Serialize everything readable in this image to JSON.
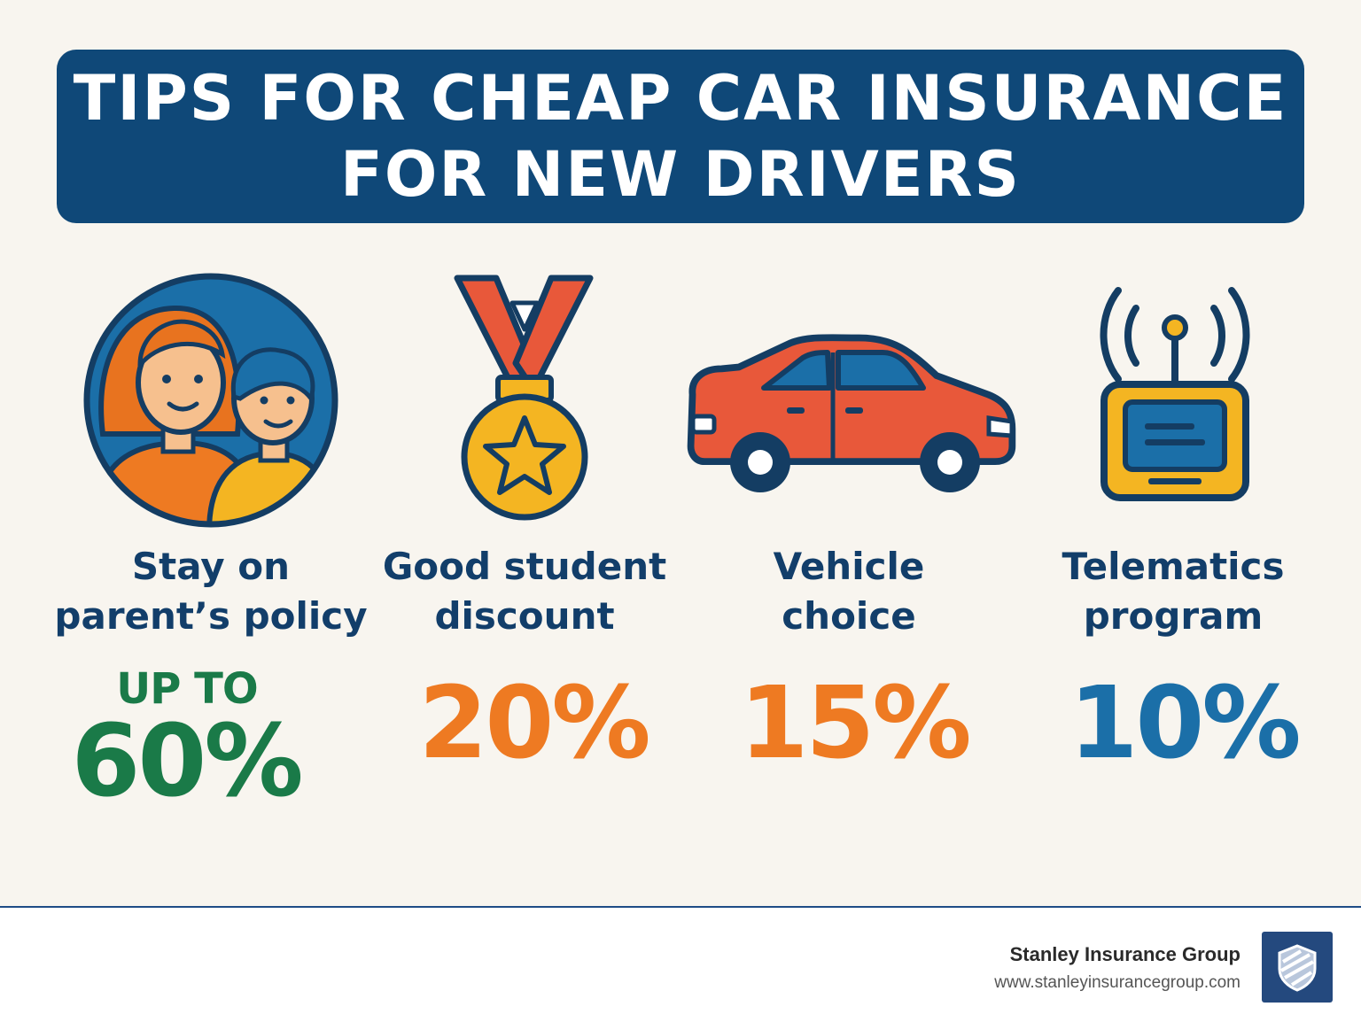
{
  "title": {
    "line1": "TIPS FOR CHEAP CAR INSURANCE",
    "line2": "FOR NEW DRIVERS"
  },
  "tips": [
    {
      "label_line1": "Stay on",
      "label_line2": "parent’s policy",
      "prefix": "UP TO",
      "value": "60%",
      "color": "#1a7a48",
      "icon": "parent-child-icon"
    },
    {
      "label_line1": "Good student",
      "label_line2": "discount",
      "value": "20%",
      "color": "#ee7a22",
      "icon": "medal-icon"
    },
    {
      "label_line1": "Vehicle",
      "label_line2": "choice",
      "value": "15%",
      "color": "#ee7a22",
      "icon": "car-icon"
    },
    {
      "label_line1": "Telematics",
      "label_line2": "program",
      "value": "10%",
      "color": "#1b6fa8",
      "icon": "telematics-device-icon"
    }
  ],
  "footer": {
    "company": "Stanley Insurance Group",
    "url": "www.stanleyinsurancegroup.com",
    "logo_icon": "shield-icon"
  },
  "colors": {
    "background": "#f8f5ef",
    "banner": "#0f4878",
    "label_text": "#123e6a"
  }
}
